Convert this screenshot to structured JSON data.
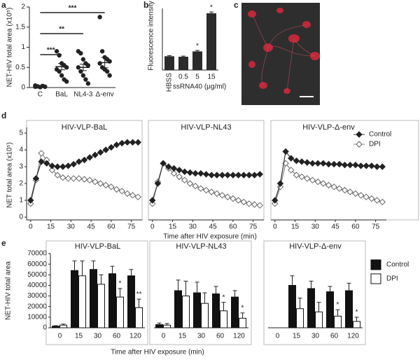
{
  "chart_data": [
    {
      "panel": "a",
      "type": "dot",
      "y_label": "NET-HIV total area (x10⁵)",
      "categories": [
        "C",
        "BaL",
        "NL4-3",
        "Δ-env"
      ],
      "points": [
        [
          0.02,
          0.03,
          0.01,
          0.04,
          0.02,
          0.05
        ],
        [
          0.9,
          0.8,
          0.6,
          0.55,
          0.5,
          0.45,
          0.4,
          0.3,
          0.2,
          0.15
        ],
        [
          0.9,
          0.85,
          0.7,
          0.6,
          0.55,
          0.5,
          0.4,
          0.3,
          0.2,
          0.1
        ],
        [
          1.75,
          0.9,
          0.75,
          0.7,
          0.65,
          0.6,
          0.5,
          0.45,
          0.4,
          0.3
        ]
      ],
      "means": [
        0.02,
        0.52,
        0.5,
        0.62
      ],
      "errors": [
        0.01,
        0.08,
        0.08,
        0.13
      ],
      "significance": [
        "***",
        "**",
        "***"
      ],
      "ylim": [
        0,
        2
      ],
      "yticks": [
        0,
        0.5,
        1,
        1.5,
        2
      ]
    },
    {
      "panel": "b",
      "type": "bar",
      "y_label": "Fluorescence intensity",
      "x_label": "ssRNA40 (μg/ml)",
      "categories": [
        "HBSS",
        "0.5",
        "5",
        "15"
      ],
      "values": [
        850,
        820,
        1150,
        3500
      ],
      "errors": [
        40,
        40,
        60,
        80
      ],
      "annotations": [
        null,
        null,
        "*",
        "*"
      ],
      "color": "#2b2b2b",
      "ylim": [
        0,
        3800
      ]
    },
    {
      "panel": "c",
      "type": "image"
    },
    {
      "panel": "d",
      "type": "line",
      "y_label": "NET total area (x10⁵)",
      "x_label": "Time after HIV exposure (min)",
      "x": [
        0,
        4,
        8,
        12,
        16,
        20,
        24,
        28,
        32,
        36,
        40,
        44,
        48,
        52,
        56,
        60,
        64,
        68,
        72,
        76,
        80
      ],
      "xlim": [
        -3,
        83
      ],
      "xticks": [
        0,
        15,
        30,
        45,
        60,
        75
      ],
      "ylim": [
        0,
        5
      ],
      "yticks": [
        0,
        1,
        2,
        3,
        4,
        5
      ],
      "series": [
        {
          "name": "Control",
          "color": "#222222"
        },
        {
          "name": "DPI",
          "color": "#ffffff"
        }
      ],
      "panels": [
        {
          "title": "HIV-VLP-BaL",
          "values": [
            [
              1.0,
              2.3,
              3.3,
              3.2,
              3.05,
              3.0,
              3.0,
              3.05,
              3.15,
              3.3,
              3.4,
              3.55,
              3.7,
              3.85,
              4.0,
              4.15,
              4.3,
              4.4,
              4.45,
              4.45,
              4.45
            ],
            [
              0.8,
              2.2,
              3.8,
              3.4,
              2.8,
              2.5,
              2.35,
              2.3,
              2.3,
              2.3,
              2.25,
              2.2,
              2.1,
              2.0,
              1.9,
              1.8,
              1.65,
              1.55,
              1.4,
              1.3,
              1.2
            ]
          ]
        },
        {
          "title": "HIV-VLP-NL43",
          "values": [
            [
              1.0,
              2.0,
              3.2,
              3.0,
              2.9,
              2.8,
              2.7,
              2.65,
              2.6,
              2.6,
              2.55,
              2.5,
              2.5,
              2.5,
              2.5,
              2.5,
              2.5,
              2.5,
              2.5,
              2.5,
              2.55
            ],
            [
              0.8,
              2.1,
              3.2,
              2.9,
              2.6,
              2.4,
              2.2,
              2.0,
              1.85,
              1.7,
              1.6,
              1.5,
              1.4,
              1.3,
              1.2,
              1.1,
              1.0,
              0.9,
              0.8,
              0.75,
              0.7
            ]
          ]
        },
        {
          "title": "HIV-VLP-Δ-env",
          "values": [
            [
              1.0,
              2.0,
              3.9,
              3.5,
              3.35,
              3.3,
              3.25,
              3.2,
              3.2,
              3.2,
              3.15,
              3.15,
              3.15,
              3.1,
              3.1,
              3.1,
              3.05,
              3.05,
              3.05,
              3.0,
              3.0
            ],
            [
              0.8,
              1.8,
              3.2,
              2.8,
              2.5,
              2.4,
              2.3,
              2.2,
              2.1,
              2.0,
              1.9,
              1.8,
              1.7,
              1.6,
              1.5,
              1.4,
              1.3,
              1.2,
              1.1,
              1.0,
              0.9
            ]
          ]
        }
      ]
    },
    {
      "panel": "e",
      "type": "grouped-bar",
      "y_label": "NET-HIV total area",
      "x_label": "Time after HIV exposure (min)",
      "categories": [
        "0",
        "15",
        "30",
        "60",
        "120"
      ],
      "ylim": [
        0,
        70000
      ],
      "yticks": [
        0,
        10000,
        20000,
        30000,
        40000,
        50000,
        60000,
        70000
      ],
      "series": [
        {
          "name": "Control",
          "color": "#111111"
        },
        {
          "name": "DPI",
          "color": "#ffffff"
        }
      ],
      "panels": [
        {
          "title": "HIV-VLP-BaL",
          "values": [
            [
              1500,
              54000,
              55000,
              51000,
              49000
            ],
            [
              2500,
              49000,
              41000,
              29000,
              19000
            ]
          ],
          "errors": [
            [
              500,
              9000,
              8000,
              7000,
              6000
            ],
            [
              1000,
              14000,
              9000,
              8000,
              8000
            ]
          ],
          "annotations": [
            [
              null,
              null,
              null,
              null,
              null
            ],
            [
              null,
              null,
              null,
              "*",
              "**"
            ]
          ]
        },
        {
          "title": "HIV-VLP-NL43",
          "values": [
            [
              3000,
              35000,
              33000,
              32000,
              29000
            ],
            [
              2500,
              30000,
              23000,
              16000,
              9000
            ]
          ],
          "errors": [
            [
              1500,
              10000,
              10000,
              7000,
              6000
            ],
            [
              1500,
              14000,
              10000,
              8000,
              5000
            ]
          ],
          "annotations": [
            [
              null,
              null,
              null,
              null,
              null
            ],
            [
              null,
              null,
              null,
              "*",
              "*"
            ]
          ]
        },
        {
          "title": "HIV-VLP-Δ-env",
          "values": [
            [
              0,
              40000,
              37000,
              34000,
              35000
            ],
            [
              0,
              18000,
              15000,
              11000,
              6000
            ]
          ],
          "errors": [
            [
              0,
              9000,
              7000,
              5000,
              7000
            ],
            [
              0,
              10000,
              9000,
              6000,
              4000
            ]
          ],
          "annotations": [
            [
              null,
              null,
              null,
              null,
              null
            ],
            [
              null,
              null,
              null,
              "*",
              "*"
            ]
          ]
        }
      ]
    }
  ]
}
